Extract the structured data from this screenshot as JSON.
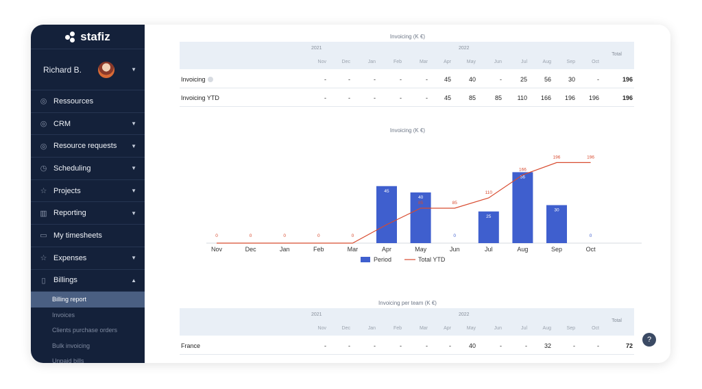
{
  "app": {
    "logo": "stafiz"
  },
  "user": {
    "name": "Richard B."
  },
  "nav": [
    {
      "label": "Ressources",
      "icon": "person-icon",
      "caret": false
    },
    {
      "label": "CRM",
      "icon": "person-icon",
      "caret": true
    },
    {
      "label": "Resource requests",
      "icon": "person-icon",
      "caret": true
    },
    {
      "label": "Scheduling",
      "icon": "clock-icon",
      "caret": true
    },
    {
      "label": "Projects",
      "icon": "star-icon",
      "caret": true
    },
    {
      "label": "Reporting",
      "icon": "bar-chart-icon",
      "caret": true
    },
    {
      "label": "My timesheets",
      "icon": "calendar-icon",
      "caret": false
    },
    {
      "label": "Expenses",
      "icon": "star-icon",
      "caret": true
    },
    {
      "label": "Billings",
      "icon": "document-icon",
      "caret": true,
      "expanded": true
    }
  ],
  "billings_sub": [
    "Billing report",
    "Invoices",
    "Clients purchase orders",
    "Bulk invoicing",
    "Unpaid bills"
  ],
  "invoicing_table": {
    "title": "Invoicing (K €)",
    "year_2021": "2021",
    "year_2022": "2022",
    "months": [
      "Nov",
      "Dec",
      "Jan",
      "Feb",
      "Mar",
      "Apr",
      "May",
      "Jun",
      "Jul",
      "Aug",
      "Sep",
      "Oct"
    ],
    "total_label": "Total",
    "rows": [
      {
        "label": "Invoicing",
        "values": [
          "-",
          "-",
          "-",
          "-",
          "-",
          "45",
          "40",
          "-",
          "25",
          "56",
          "30",
          "-"
        ],
        "total": "196"
      },
      {
        "label": "Invoicing YTD",
        "values": [
          "-",
          "-",
          "-",
          "-",
          "-",
          "45",
          "85",
          "85",
          "110",
          "166",
          "196",
          "196"
        ],
        "total": "196"
      }
    ]
  },
  "chart_data": {
    "type": "bar",
    "title": "Invoicing (K €)",
    "categories": [
      "Nov",
      "Dec",
      "Jan",
      "Feb",
      "Mar",
      "Apr",
      "May",
      "Jun",
      "Jul",
      "Aug",
      "Sep",
      "Oct"
    ],
    "series": [
      {
        "name": "Period",
        "type": "bar",
        "color": "#3f5fce",
        "values": [
          0,
          0,
          0,
          0,
          0,
          45,
          40,
          0,
          25,
          56,
          30,
          0
        ]
      },
      {
        "name": "Total YTD",
        "type": "line",
        "color": "#d84a2e",
        "values": [
          0,
          0,
          0,
          0,
          0,
          45,
          85,
          85,
          110,
          166,
          196,
          196
        ]
      }
    ],
    "legend": "bottom"
  },
  "team_table": {
    "title": "Invoicing per team (K €)",
    "year_2021": "2021",
    "year_2022": "2022",
    "months": [
      "Nov",
      "Dec",
      "Jan",
      "Feb",
      "Mar",
      "Apr",
      "May",
      "Jun",
      "Jul",
      "Aug",
      "Sep",
      "Oct"
    ],
    "total_label": "Total",
    "rows": [
      {
        "label": "France",
        "values": [
          "-",
          "-",
          "-",
          "-",
          "-",
          "-",
          "40",
          "-",
          "-",
          "32",
          "-",
          "-"
        ],
        "total": "72"
      }
    ]
  }
}
